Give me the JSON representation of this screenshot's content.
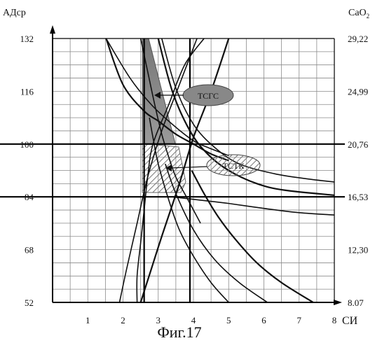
{
  "chart_data": {
    "type": "line",
    "title": "",
    "caption": "Фиг.17",
    "xlabel": "СИ",
    "ylabel_left": "АДср",
    "ylabel_right_base": "CaO",
    "ylabel_right_sub": "2",
    "xlim": [
      0,
      8
    ],
    "ylim": [
      52,
      132
    ],
    "x_ticks": [
      "1",
      "2",
      "3",
      "4",
      "5",
      "6",
      "7",
      "8"
    ],
    "y_ticks_left": [
      "132",
      "116",
      "100",
      "84",
      "68",
      "52"
    ],
    "y_ticks_right": [
      "29,22",
      "24,99",
      "20,76",
      "16,53",
      "12,30",
      "8.07"
    ],
    "grid": true,
    "reference_lines": {
      "x": [
        2.6,
        3.9
      ],
      "y": [
        100,
        84
      ]
    },
    "annotations": [
      {
        "label": "ТСГС",
        "anchor": [
          3.2,
          114
        ]
      },
      {
        "label": "ТСТК",
        "anchor": [
          3.1,
          93
        ]
      }
    ],
    "series": [
      {
        "points": [
          [
            1.52,
            132
          ],
          [
            2.0,
            118
          ],
          [
            2.6,
            110
          ],
          [
            3.0,
            107
          ],
          [
            3.5,
            103
          ],
          [
            4.0,
            100
          ],
          [
            4.5,
            97
          ],
          [
            5.0,
            95
          ]
        ]
      },
      {
        "points": [
          [
            1.52,
            132
          ],
          [
            2.2,
            120
          ],
          [
            2.8,
            112
          ],
          [
            3.4,
            106
          ],
          [
            4.0,
            101
          ],
          [
            4.4,
            99
          ],
          [
            5.0,
            96.5
          ]
        ]
      },
      {
        "points": [
          [
            2.5,
            132
          ],
          [
            2.7,
            122
          ],
          [
            2.9,
            112
          ],
          [
            3.1,
            103
          ],
          [
            3.3,
            96
          ],
          [
            3.5,
            90
          ],
          [
            3.8,
            84
          ],
          [
            4.2,
            76
          ]
        ]
      },
      {
        "points": [
          [
            3.0,
            132
          ],
          [
            3.4,
            116
          ],
          [
            3.9,
            104
          ],
          [
            4.4,
            97
          ],
          [
            5.0,
            92
          ],
          [
            5.8,
            88
          ],
          [
            6.6,
            86
          ],
          [
            8.0,
            84.5
          ]
        ]
      },
      {
        "points": [
          [
            3.1,
            132
          ],
          [
            3.5,
            117
          ],
          [
            4.0,
            106
          ],
          [
            4.6,
            99
          ],
          [
            5.3,
            94
          ],
          [
            6.3,
            91
          ],
          [
            7.2,
            89.5
          ],
          [
            8.0,
            88.5
          ]
        ]
      },
      {
        "points": [
          [
            1.9,
            52
          ],
          [
            2.1,
            62
          ],
          [
            2.4,
            76
          ],
          [
            2.7,
            90
          ],
          [
            3.1,
            104
          ],
          [
            3.6,
            118
          ],
          [
            4.1,
            132
          ]
        ]
      },
      {
        "points": [
          [
            2.5,
            52
          ],
          [
            2.8,
            62
          ],
          [
            3.1,
            72
          ],
          [
            3.6,
            88
          ],
          [
            4.0,
            102
          ],
          [
            4.5,
            116
          ],
          [
            5.0,
            132
          ]
        ]
      },
      {
        "points": [
          [
            2.4,
            52
          ],
          [
            2.4,
            60
          ],
          [
            2.5,
            70
          ],
          [
            2.6,
            80
          ],
          [
            2.7,
            90
          ],
          [
            2.85,
            100
          ],
          [
            3.3,
            112
          ],
          [
            3.75,
            124
          ],
          [
            4.3,
            132
          ]
        ]
      },
      {
        "points": [
          [
            5.0,
            52
          ],
          [
            4.5,
            58
          ],
          [
            4.0,
            66
          ],
          [
            3.6,
            74
          ],
          [
            3.3,
            83
          ],
          [
            3.0,
            94
          ],
          [
            2.85,
            102
          ],
          [
            2.75,
            108
          ]
        ]
      },
      {
        "points": [
          [
            7.4,
            52
          ],
          [
            6.5,
            58
          ],
          [
            5.8,
            64
          ],
          [
            5.2,
            71
          ],
          [
            4.7,
            78
          ],
          [
            4.3,
            85
          ],
          [
            3.95,
            92
          ]
        ]
      },
      {
        "points": [
          [
            6.1,
            52
          ],
          [
            5.3,
            58
          ],
          [
            4.6,
            65
          ],
          [
            4.0,
            74
          ],
          [
            3.5,
            85
          ],
          [
            3.2,
            94
          ]
        ]
      },
      {
        "points": [
          [
            3.4,
            84
          ],
          [
            4.2,
            83
          ],
          [
            5.0,
            82
          ],
          [
            6.0,
            80.5
          ],
          [
            7.0,
            79.2
          ],
          [
            8.0,
            78.5
          ]
        ]
      }
    ]
  }
}
